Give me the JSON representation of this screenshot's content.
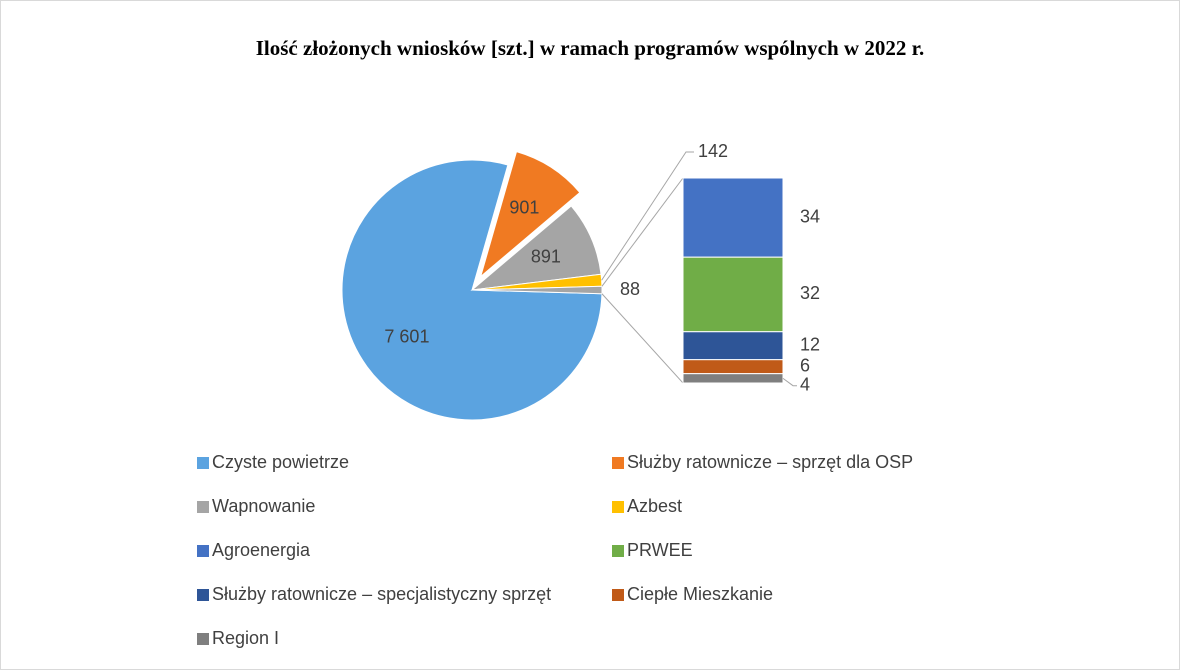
{
  "chart_data": {
    "type": "pie-of-bar",
    "title": "Ilość złożonych wniosków [szt.] w ramach programów wspólnych w 2022 r.",
    "categories": [
      "Czyste powietrze",
      "Służby ratownicze – sprzęt dla OSP",
      "Wapnowanie",
      "Azbest",
      "Agroenergia",
      "PRWEE",
      "Służby ratownicze – specjalistyczny sprzęt",
      "Ciepłe Mieszkanie",
      "Region I"
    ],
    "values": [
      7601,
      901,
      891,
      142,
      34,
      32,
      12,
      6,
      4
    ],
    "value_labels": [
      "7 601",
      "901",
      "891",
      "142",
      "34",
      "32",
      "12",
      "6",
      "4"
    ],
    "colors": [
      "#5ba3e0",
      "#f07a22",
      "#a5a5a5",
      "#ffc000",
      "#4472c4",
      "#70ad47",
      "#2e5597",
      "#c05a18",
      "#7f7f7f"
    ],
    "pie_count": 4,
    "other_value": 88,
    "other_color": "#a5a5a5",
    "legend": "bottom"
  }
}
